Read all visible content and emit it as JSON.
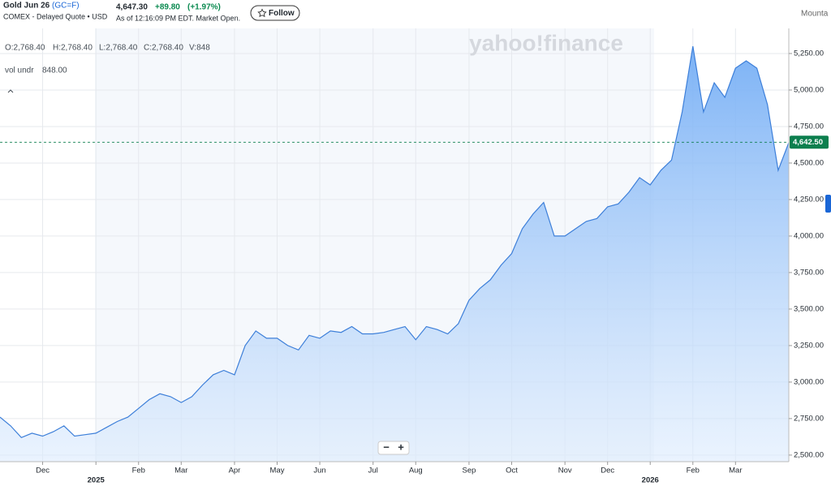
{
  "header": {
    "name": "Gold Jun 26",
    "symbol": "(GC=F)",
    "exchange": "COMEX - Delayed Quote • USD",
    "price": "4,647.30",
    "change": "+89.80",
    "change_pct": "(+1.97%)",
    "timestamp": "As of 12:16:09 PM EDT. Market Open.",
    "follow": "Follow",
    "timezone": "Mounta"
  },
  "ohlc": {
    "open": "O:2,768.40",
    "high": "H:2,768.40",
    "low": "L:2,768.40",
    "close": "C:2,768.40",
    "volume": "V:848"
  },
  "indicator": {
    "name": "vol undr",
    "value": "848.00"
  },
  "watermark": "yahoo!finance",
  "zoom_controls": [
    "−",
    "+"
  ],
  "chart_data": {
    "type": "area",
    "categories": [
      null,
      null,
      null,
      null,
      "Dec",
      null,
      null,
      null,
      null,
      "2025",
      null,
      null,
      null,
      "Feb",
      null,
      null,
      null,
      "Mar",
      null,
      null,
      null,
      null,
      "Apr",
      null,
      null,
      null,
      "May",
      null,
      null,
      null,
      "Jun",
      null,
      null,
      null,
      null,
      "Jul",
      null,
      null,
      null,
      "Aug",
      null,
      null,
      null,
      null,
      "Sep",
      null,
      null,
      null,
      "Oct",
      null,
      null,
      null,
      null,
      "Nov",
      null,
      null,
      null,
      "Dec",
      null,
      null,
      null,
      "2026",
      null,
      null,
      null,
      "Feb",
      null,
      null,
      null,
      "Mar",
      null,
      null,
      null,
      null,
      null
    ],
    "series": [
      {
        "name": "GC=F",
        "color": "#3d7fd9",
        "values": [
          2760,
          2700,
          2620,
          2650,
          2630,
          2660,
          2700,
          2630,
          2640,
          2650,
          2690,
          2730,
          2760,
          2820,
          2880,
          2920,
          2900,
          2860,
          2900,
          2980,
          3050,
          3080,
          3050,
          3250,
          3350,
          3300,
          3300,
          3250,
          3220,
          3320,
          3300,
          3350,
          3340,
          3380,
          3330,
          3330,
          3340,
          3360,
          3380,
          3290,
          3380,
          3360,
          3330,
          3400,
          3560,
          3640,
          3700,
          3800,
          3880,
          4050,
          4150,
          4230,
          4000,
          4000,
          4050,
          4100,
          4120,
          4200,
          4220,
          4300,
          4400,
          4350,
          4450,
          4520,
          4850,
          5300,
          4850,
          5050,
          4950,
          5150,
          5200,
          5150,
          4900,
          4450,
          4640
        ]
      }
    ],
    "ylim": [
      2455,
      5422
    ],
    "yticks": [
      {
        "value": 2500,
        "label": "2,500.00"
      },
      {
        "value": 2750,
        "label": "2,750.00"
      },
      {
        "value": 3000,
        "label": "3,000.00"
      },
      {
        "value": 3250,
        "label": "3,250.00"
      },
      {
        "value": 3500,
        "label": "3,500.00"
      },
      {
        "value": 3750,
        "label": "3,750.00"
      },
      {
        "value": 4000,
        "label": "4,000.00"
      },
      {
        "value": 4250,
        "label": "4,250.00"
      },
      {
        "value": 4500,
        "label": "4,500.00"
      },
      {
        "value": 4750,
        "label": "4,750.00"
      },
      {
        "value": 5000,
        "label": "5,000.00"
      },
      {
        "value": 5250,
        "label": "5,250.00"
      }
    ],
    "current": {
      "value": 4642.5,
      "label": "4,642.50"
    },
    "grid": true
  }
}
